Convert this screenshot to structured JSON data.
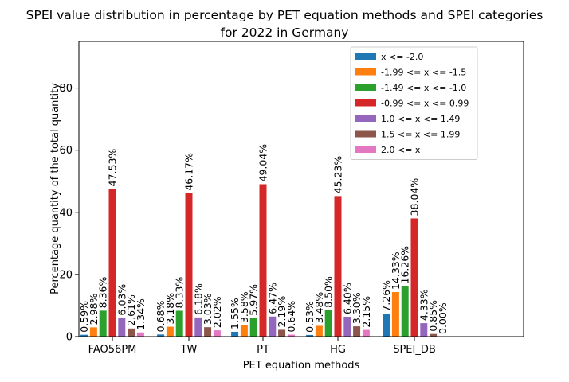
{
  "chart_data": {
    "type": "bar",
    "title_line1": "SPEI value distribution in percentage by PET equation methods and SPEI categories",
    "title_line2": "for 2022 in Germany",
    "xlabel": "PET equation methods",
    "ylabel": "Percentage quantity of the total quantity",
    "ylim": [
      0,
      95
    ],
    "yticks": [
      0,
      20,
      40,
      60,
      80
    ],
    "grid": false,
    "legend_position": "top-right",
    "categories": [
      "FAO56PM",
      "TW",
      "PT",
      "HG",
      "SPEI_DB"
    ],
    "series": [
      {
        "name": "x <= -2.0",
        "color": "#1f77b4",
        "values": [
          0.59,
          0.68,
          1.55,
          0.53,
          7.26
        ],
        "labels": [
          "0.59%",
          "0.68%",
          "1.55%",
          "0.53%",
          "7.26%"
        ]
      },
      {
        "name": "-1.99 <= x <= -1.5",
        "color": "#ff7f0e",
        "values": [
          2.98,
          3.18,
          3.58,
          3.48,
          14.33
        ],
        "labels": [
          "2.98%",
          "3.18%",
          "3.58%",
          "3.48%",
          "14.33%"
        ]
      },
      {
        "name": "-1.49 <= x <= -1.0",
        "color": "#2ca02c",
        "values": [
          8.36,
          8.33,
          5.97,
          8.5,
          16.26
        ],
        "labels": [
          "8.36%",
          "8.33%",
          "5.97%",
          "8.50%",
          "16.26%"
        ]
      },
      {
        "name": "-0.99 <= x <= 0.99",
        "color": "#d62728",
        "values": [
          47.53,
          46.17,
          49.04,
          45.23,
          38.04
        ],
        "labels": [
          "47.53%",
          "46.17%",
          "49.04%",
          "45.23%",
          "38.04%"
        ]
      },
      {
        "name": "1.0 <= x <= 1.49",
        "color": "#9467bd",
        "values": [
          6.03,
          6.18,
          6.47,
          6.4,
          4.33
        ],
        "labels": [
          "6.03%",
          "6.18%",
          "6.47%",
          "6.40%",
          "4.33%"
        ]
      },
      {
        "name": "1.5 <= x <= 1.99",
        "color": "#8c564b",
        "values": [
          2.61,
          3.03,
          2.19,
          3.3,
          0.85
        ],
        "labels": [
          "2.61%",
          "3.03%",
          "2.19%",
          "3.30%",
          "0.85%"
        ]
      },
      {
        "name": "2.0 <= x",
        "color": "#e377c2",
        "values": [
          1.34,
          2.02,
          0.64,
          2.15,
          0.0
        ],
        "labels": [
          "1.34%",
          "2.02%",
          "0.64%",
          "2.15%",
          "0.00%"
        ]
      }
    ]
  }
}
